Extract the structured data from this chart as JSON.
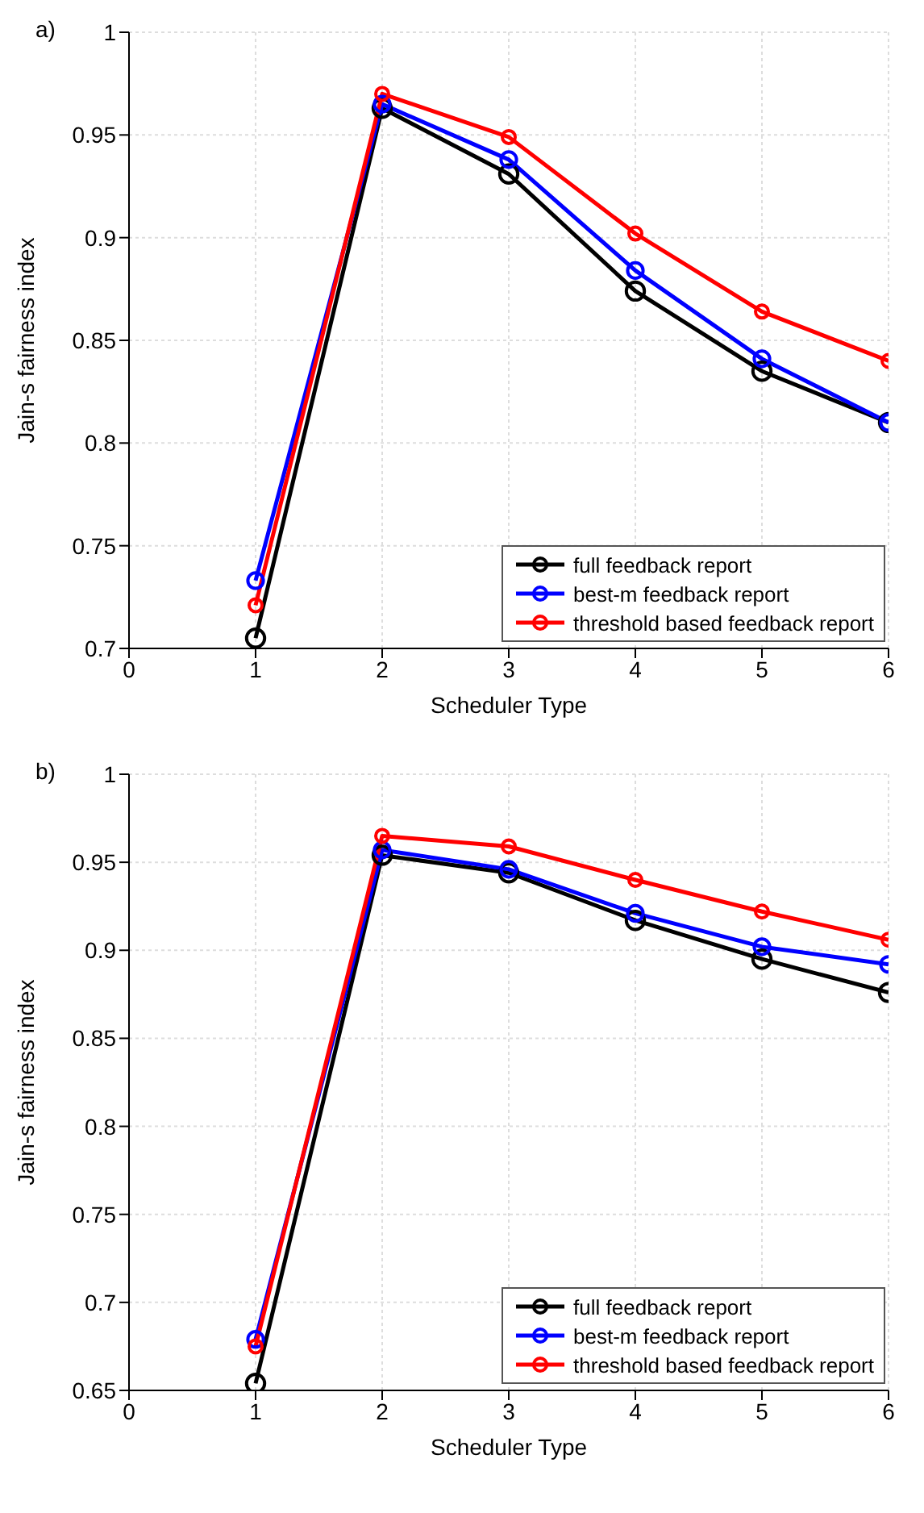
{
  "chart_data": [
    {
      "type": "line",
      "title": "a)",
      "xlabel": "Scheduler Type",
      "ylabel": "Jain-s fairness index",
      "x": [
        1,
        2,
        3,
        4,
        5,
        6
      ],
      "xlim": [
        0,
        6
      ],
      "xticks": [
        0,
        1,
        2,
        3,
        4,
        5,
        6
      ],
      "ylim": [
        0.7,
        1
      ],
      "yticks": [
        0.7,
        0.75,
        0.8,
        0.85,
        0.9,
        0.95,
        1
      ],
      "grid": true,
      "legend": "bottom right",
      "marker": "circle",
      "line_style": "solid",
      "series": [
        {
          "name": "full feedback report",
          "color": "#000000",
          "values": [
            0.705,
            0.963,
            0.931,
            0.874,
            0.835,
            0.81
          ]
        },
        {
          "name": "best-m feedback report",
          "color": "#0000ff",
          "values": [
            0.733,
            0.965,
            0.938,
            0.884,
            0.841,
            0.81
          ]
        },
        {
          "name": "threshold based feedback report",
          "color": "#ff0000",
          "values": [
            0.721,
            0.97,
            0.949,
            0.902,
            0.864,
            0.84
          ]
        }
      ]
    },
    {
      "type": "line",
      "title": "b)",
      "xlabel": "Scheduler Type",
      "ylabel": "Jain-s fairness index",
      "x": [
        1,
        2,
        3,
        4,
        5,
        6
      ],
      "xlim": [
        0,
        6
      ],
      "xticks": [
        0,
        1,
        2,
        3,
        4,
        5,
        6
      ],
      "ylim": [
        0.65,
        1
      ],
      "yticks": [
        0.65,
        0.7,
        0.75,
        0.8,
        0.85,
        0.9,
        0.95,
        1
      ],
      "grid": true,
      "legend": "bottom right",
      "marker": "circle",
      "line_style": "solid",
      "series": [
        {
          "name": "full feedback report",
          "color": "#000000",
          "values": [
            0.654,
            0.954,
            0.944,
            0.917,
            0.895,
            0.876
          ]
        },
        {
          "name": "best-m feedback report",
          "color": "#0000ff",
          "values": [
            0.679,
            0.957,
            0.946,
            0.921,
            0.902,
            0.892
          ]
        },
        {
          "name": "threshold based feedback report",
          "color": "#ff0000",
          "values": [
            0.675,
            0.965,
            0.959,
            0.94,
            0.922,
            0.906
          ]
        }
      ]
    }
  ]
}
